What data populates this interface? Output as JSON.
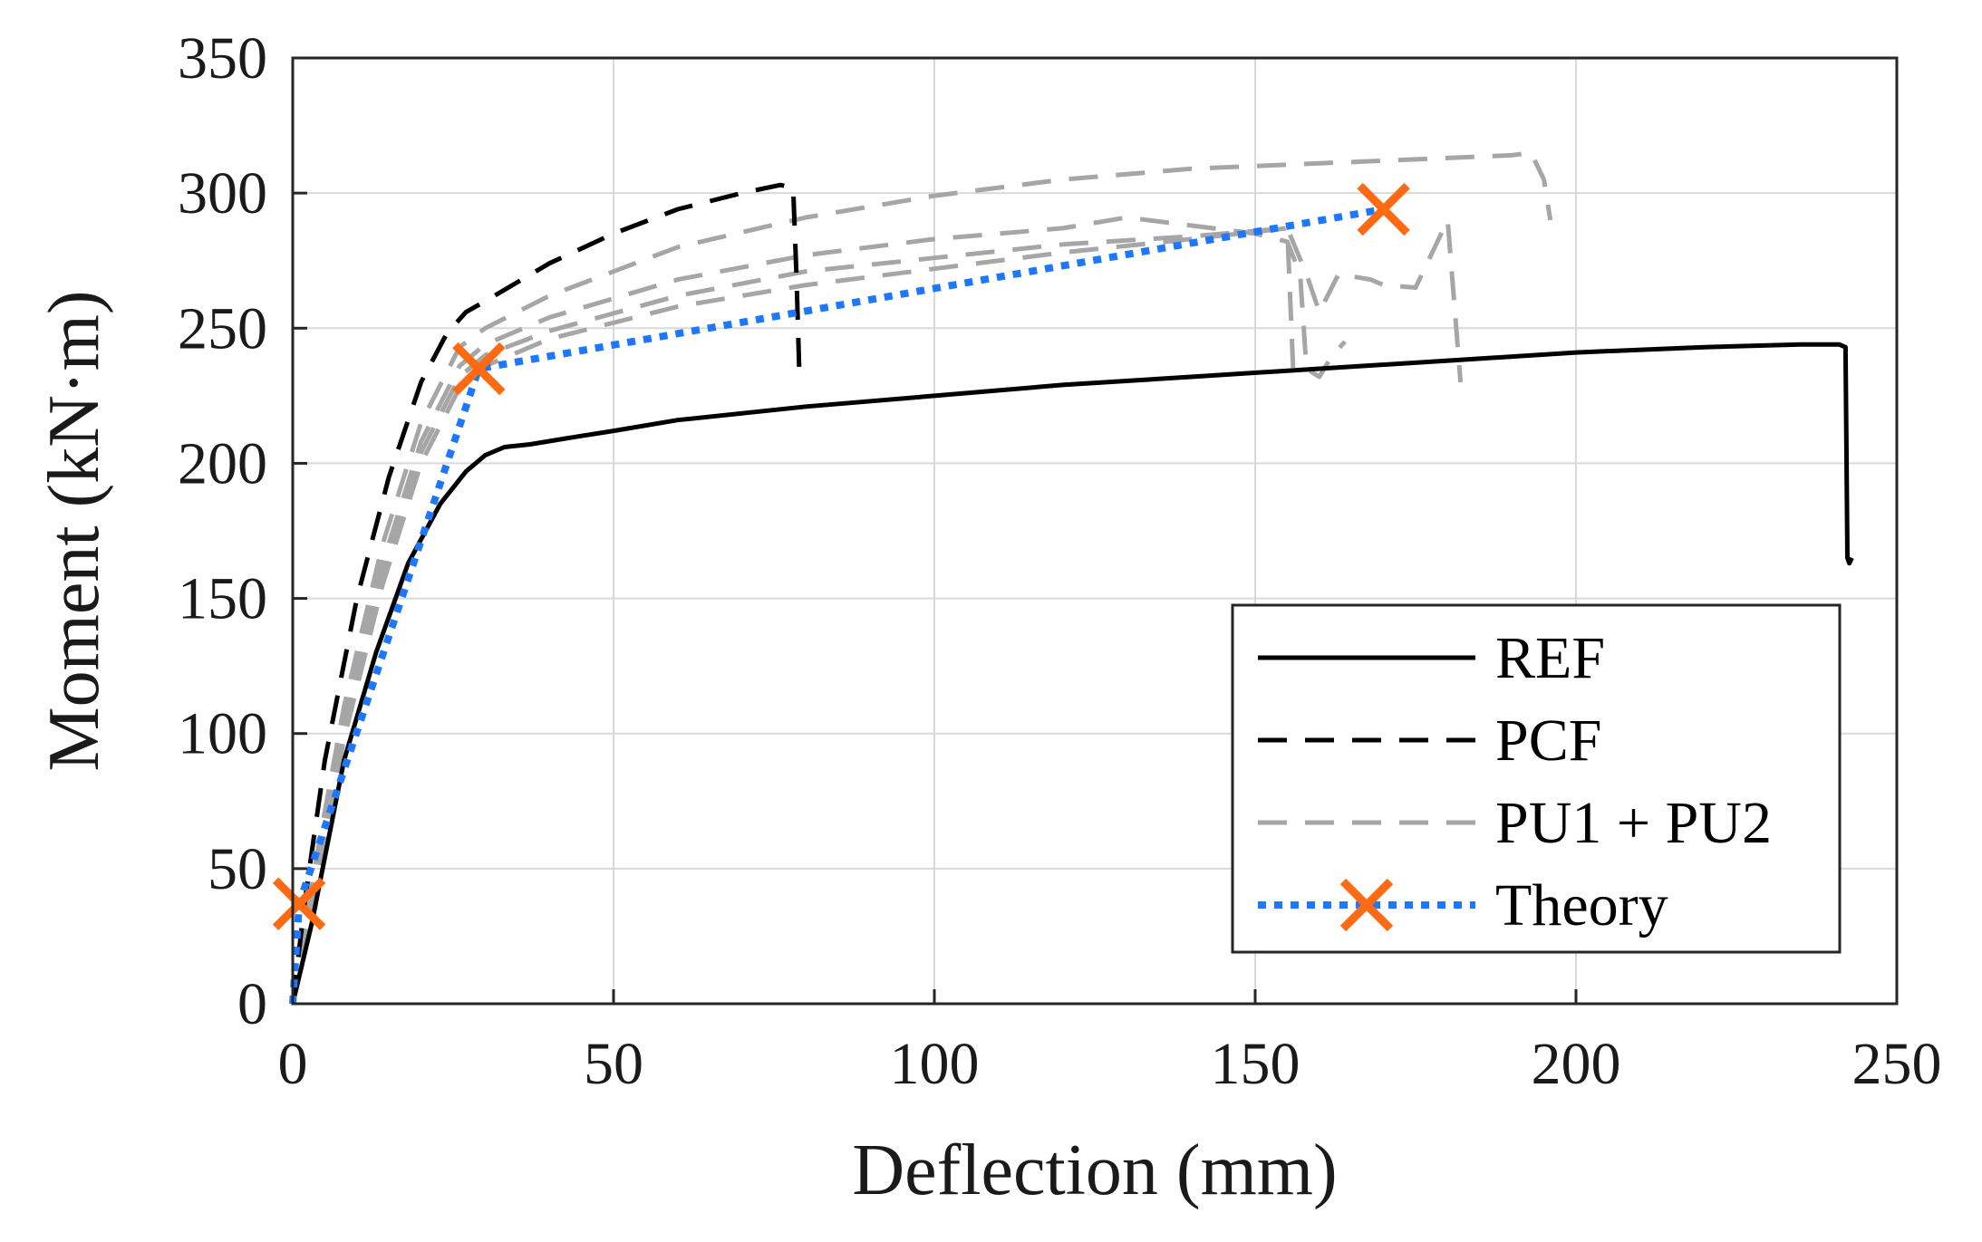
{
  "chart_data": {
    "type": "line",
    "title": "",
    "xlabel": "Deflection (mm)",
    "ylabel": "Moment (kN·m)",
    "xlim": [
      0,
      250
    ],
    "ylim": [
      0,
      350
    ],
    "xticks": [
      0,
      50,
      100,
      150,
      200,
      250
    ],
    "yticks": [
      0,
      50,
      100,
      150,
      200,
      250,
      300,
      350
    ],
    "grid": true,
    "legend_position": "bottom-right",
    "series": [
      {
        "name": "REF",
        "style": "solid",
        "color": "#000000",
        "x": [
          0,
          3,
          8,
          13,
          18,
          23,
          27,
          30,
          33,
          37,
          42,
          50,
          60,
          80,
          100,
          120,
          140,
          160,
          180,
          200,
          220,
          235,
          241,
          242,
          242.3,
          242.6,
          243
        ],
        "y": [
          0,
          30,
          90,
          130,
          163,
          185,
          197,
          203,
          206,
          207,
          209,
          212,
          216,
          221,
          225,
          229,
          232,
          235,
          238,
          241,
          243,
          244,
          244,
          243,
          165,
          163,
          165
        ]
      },
      {
        "name": "PCF",
        "style": "dashed",
        "color": "#000000",
        "x": [
          0,
          2,
          5,
          10,
          15,
          20,
          24,
          27,
          30,
          35,
          40,
          50,
          60,
          70,
          76,
          78,
          78.5,
          79
        ],
        "y": [
          0,
          40,
          90,
          150,
          195,
          230,
          248,
          256,
          260,
          267,
          274,
          285,
          294,
          300,
          303,
          302,
          270,
          230
        ]
      },
      {
        "name": "PU1 + PU2",
        "style": "dashed",
        "color": "#a6a6a6",
        "x": [
          0,
          3,
          8,
          14,
          20,
          26,
          30,
          40,
          60,
          80,
          100,
          120,
          140,
          160,
          180,
          190,
          193,
          195,
          196
        ],
        "y": [
          0,
          45,
          110,
          170,
          215,
          243,
          250,
          262,
          280,
          291,
          299,
          305,
          309,
          311,
          313,
          314,
          315,
          305,
          290
        ]
      },
      {
        "name": "PU1 + PU2",
        "style": "dashed",
        "color": "#a6a6a6",
        "x": [
          0,
          3,
          8,
          14,
          20,
          26,
          30,
          40,
          60,
          80,
          100,
          120,
          130,
          140,
          150,
          155,
          157,
          158,
          160,
          162,
          164
        ],
        "y": [
          0,
          42,
          105,
          163,
          208,
          236,
          244,
          254,
          268,
          277,
          283,
          287,
          291,
          288,
          285,
          282,
          270,
          235,
          232,
          240,
          245
        ]
      },
      {
        "name": "PU1 + PU2",
        "style": "dashed",
        "color": "#a6a6a6",
        "x": [
          0,
          3,
          8,
          14,
          20,
          26,
          30,
          40,
          60,
          80,
          100,
          120,
          140,
          155,
          158,
          160,
          163,
          168,
          170,
          175,
          180,
          182
        ],
        "y": [
          0,
          40,
          102,
          158,
          204,
          232,
          240,
          249,
          262,
          271,
          276,
          281,
          284,
          287,
          270,
          256,
          270,
          268,
          266,
          265,
          290,
          230
        ]
      },
      {
        "name": "PU1 + PU2",
        "style": "dashed",
        "color": "#a6a6a6",
        "x": [
          0,
          3,
          8,
          14,
          20,
          26,
          30,
          40,
          60,
          80,
          100,
          120,
          140,
          155,
          156
        ],
        "y": [
          0,
          38,
          98,
          155,
          200,
          228,
          236,
          246,
          258,
          266,
          272,
          278,
          283,
          287,
          230
        ]
      },
      {
        "name": "Theory",
        "style": "dotted",
        "color": "#1e78ff",
        "marker": "x",
        "marker_color": "#ff6a13",
        "x": [
          0,
          1,
          29,
          170
        ],
        "y": [
          0,
          37,
          235,
          294
        ],
        "marker_points": [
          [
            1,
            37
          ],
          [
            29,
            235
          ],
          [
            170,
            294
          ]
        ]
      }
    ],
    "legend": {
      "entries": [
        {
          "label": "REF",
          "style": "solid",
          "color": "#000000"
        },
        {
          "label": "PCF",
          "style": "dashed",
          "color": "#000000"
        },
        {
          "label": "PU1 + PU2",
          "style": "dashed",
          "color": "#a6a6a6"
        },
        {
          "label": "Theory",
          "style": "dotted",
          "color": "#1e78ff",
          "marker": "x",
          "marker_color": "#ff6a13"
        }
      ]
    }
  }
}
